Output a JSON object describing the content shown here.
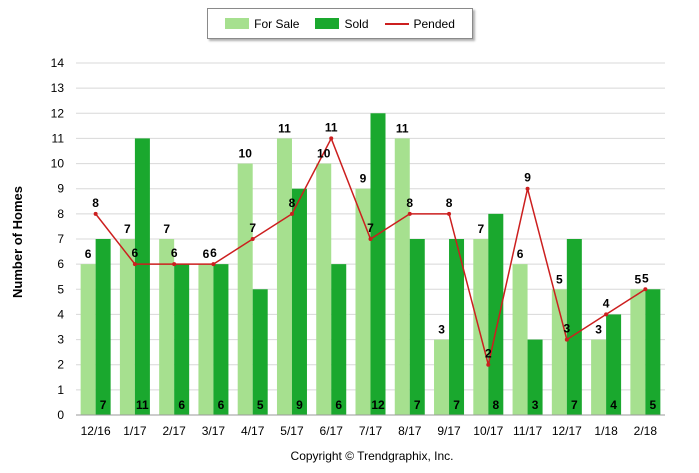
{
  "legend": {
    "for_sale": "For Sale",
    "sold": "Sold",
    "pended": "Pended"
  },
  "copyright": "Copyright © Trendgraphix, Inc.",
  "colors": {
    "for_sale": "#a6e08f",
    "sold": "#1aa82e",
    "pended": "#cc1f1f",
    "grid": "#d8d8d8"
  },
  "chart_data": {
    "type": "bar",
    "categories": [
      "12/16",
      "1/17",
      "2/17",
      "3/17",
      "4/17",
      "5/17",
      "6/17",
      "7/17",
      "8/17",
      "9/17",
      "10/17",
      "11/17",
      "12/17",
      "1/18",
      "2/18"
    ],
    "series": [
      {
        "name": "For Sale",
        "type": "bar",
        "values": [
          6,
          7,
          7,
          6,
          10,
          11,
          10,
          9,
          11,
          3,
          7,
          6,
          5,
          3,
          5
        ]
      },
      {
        "name": "Sold",
        "type": "bar",
        "values": [
          7,
          11,
          6,
          6,
          5,
          9,
          6,
          12,
          7,
          7,
          8,
          3,
          7,
          4,
          5
        ]
      },
      {
        "name": "Pended",
        "type": "line",
        "values": [
          8,
          6,
          6,
          6,
          7,
          8,
          11,
          7,
          8,
          8,
          2,
          9,
          3,
          4,
          5
        ]
      }
    ],
    "ylabel": "Number of Homes",
    "xlabel": "",
    "ylim": [
      0,
      14
    ],
    "yticks": [
      0,
      1,
      2,
      3,
      4,
      5,
      6,
      7,
      8,
      9,
      10,
      11,
      12,
      13,
      14
    ],
    "grid": true,
    "legend_position": "top-center"
  }
}
